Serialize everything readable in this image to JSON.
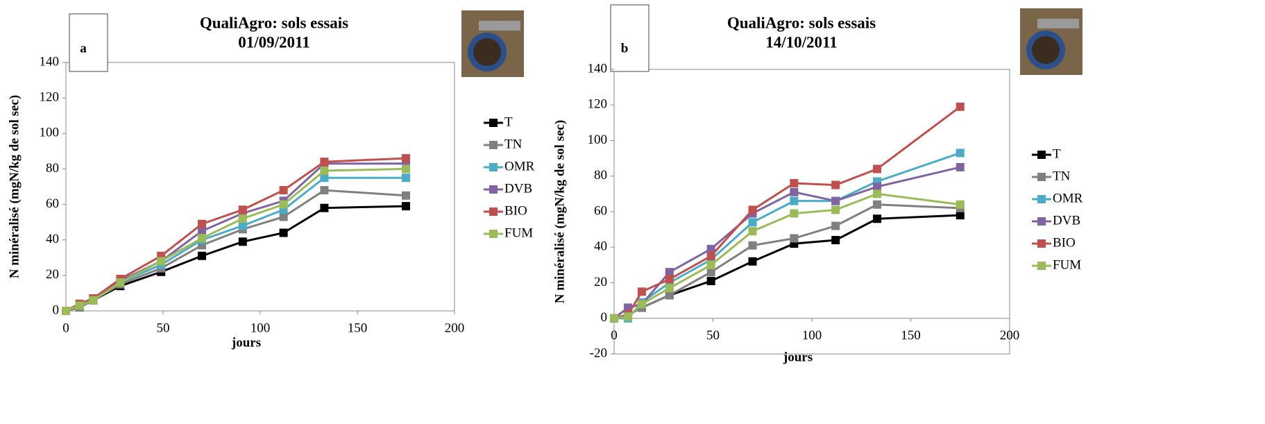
{
  "chart_data": [
    {
      "type": "line",
      "panel_label": "a",
      "title": "QualiAgro: sols essais",
      "subtitle": "01/09/2011",
      "x_label": "jours",
      "y_label": "N minéralisé (mgN/kg de sol sec)",
      "x": [
        0,
        7,
        14,
        28,
        49,
        70,
        91,
        112,
        133,
        175
      ],
      "xlim": [
        0,
        200
      ],
      "xticks": [
        0,
        50,
        100,
        150,
        200
      ],
      "ylim": [
        0,
        140
      ],
      "yticks": [
        0,
        20,
        40,
        60,
        80,
        100,
        120,
        140
      ],
      "series": [
        {
          "name": "T",
          "color": "#000000",
          "values": [
            0,
            2,
            6,
            14,
            22,
            31,
            39,
            44,
            58,
            59
          ]
        },
        {
          "name": "TN",
          "color": "#808080",
          "values": [
            0,
            2,
            6,
            15,
            24,
            37,
            46,
            53,
            68,
            65
          ]
        },
        {
          "name": "OMR",
          "color": "#4bacc6",
          "values": [
            0,
            3,
            6,
            16,
            26,
            40,
            48,
            57,
            75,
            75
          ]
        },
        {
          "name": "DVB",
          "color": "#8064a2",
          "values": [
            0,
            3,
            7,
            17,
            28,
            45,
            55,
            62,
            83,
            83
          ]
        },
        {
          "name": "BIO",
          "color": "#c0504d",
          "values": [
            0,
            4,
            7,
            18,
            31,
            49,
            57,
            68,
            84,
            86
          ]
        },
        {
          "name": "FUM",
          "color": "#9bbb59",
          "values": [
            0,
            3,
            6,
            16,
            28,
            41,
            52,
            60,
            79,
            80
          ]
        }
      ]
    },
    {
      "type": "line",
      "panel_label": "b",
      "title": "QualiAgro: sols essais",
      "subtitle": "14/10/2011",
      "x_label": "jours",
      "y_label": "N minéralisé (mgN/kg de sol sec)",
      "x": [
        0,
        7,
        14,
        28,
        49,
        70,
        91,
        112,
        133,
        175
      ],
      "xlim": [
        0,
        200
      ],
      "xticks": [
        0,
        50,
        100,
        150,
        200
      ],
      "ylim": [
        -20,
        140
      ],
      "yticks": [
        -20,
        0,
        20,
        40,
        60,
        80,
        100,
        120,
        140
      ],
      "series": [
        {
          "name": "T",
          "color": "#000000",
          "values": [
            0,
            2,
            6,
            13,
            21,
            32,
            42,
            44,
            56,
            58
          ]
        },
        {
          "name": "TN",
          "color": "#808080",
          "values": [
            0,
            2,
            6,
            13,
            26,
            41,
            45,
            52,
            64,
            62
          ]
        },
        {
          "name": "OMR",
          "color": "#4bacc6",
          "values": [
            0,
            0,
            9,
            20,
            33,
            54,
            66,
            66,
            77,
            93
          ]
        },
        {
          "name": "DVB",
          "color": "#8064a2",
          "values": [
            0,
            6,
            8,
            26,
            39,
            59,
            71,
            66,
            74,
            85
          ]
        },
        {
          "name": "BIO",
          "color": "#c0504d",
          "values": [
            0,
            2,
            15,
            22,
            35,
            61,
            76,
            75,
            84,
            119
          ]
        },
        {
          "name": "FUM",
          "color": "#9bbb59",
          "values": [
            0,
            1,
            8,
            17,
            30,
            49,
            59,
            61,
            70,
            64
          ]
        }
      ]
    }
  ]
}
